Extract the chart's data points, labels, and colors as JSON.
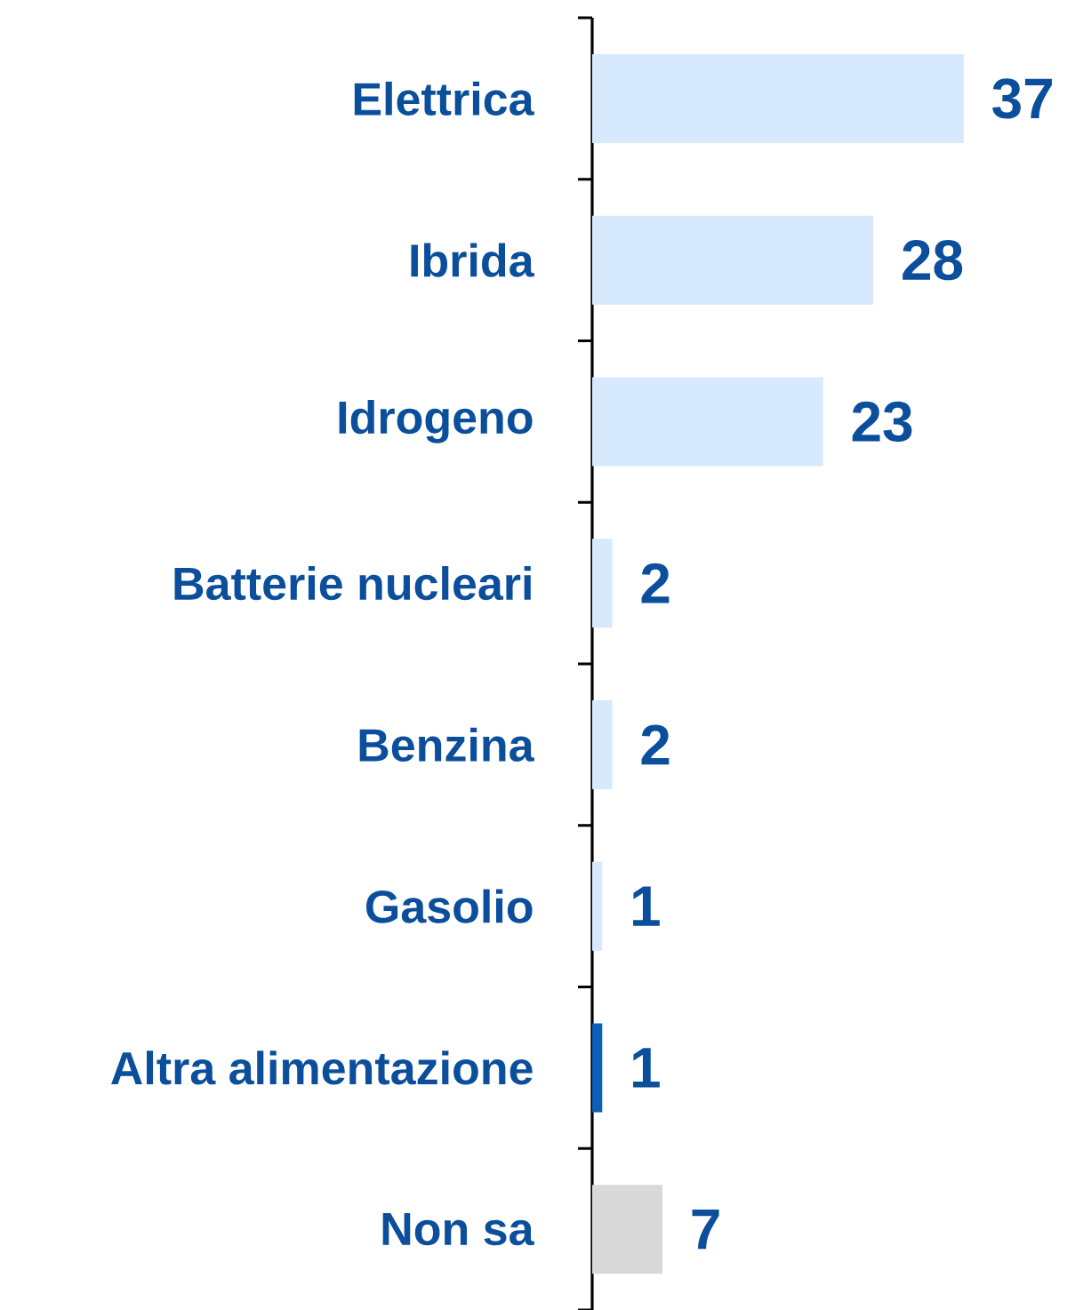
{
  "chart_data": {
    "type": "bar",
    "orientation": "horizontal",
    "data_labels": true,
    "categories": [
      "Elettrica",
      "Ibrida",
      "Idrogeno",
      "Batterie nucleari",
      "Benzina",
      "Gasolio",
      "Altra alimentazione",
      "Non sa"
    ],
    "values": [
      37,
      28,
      23,
      2,
      2,
      1,
      1,
      7
    ],
    "colors": [
      "#d6e9fd",
      "#d6e9fd",
      "#d6e9fd",
      "#d6e9fd",
      "#d6e9fd",
      "#d6e9fd",
      "#0b5fb5",
      "#d9d9d9"
    ]
  }
}
